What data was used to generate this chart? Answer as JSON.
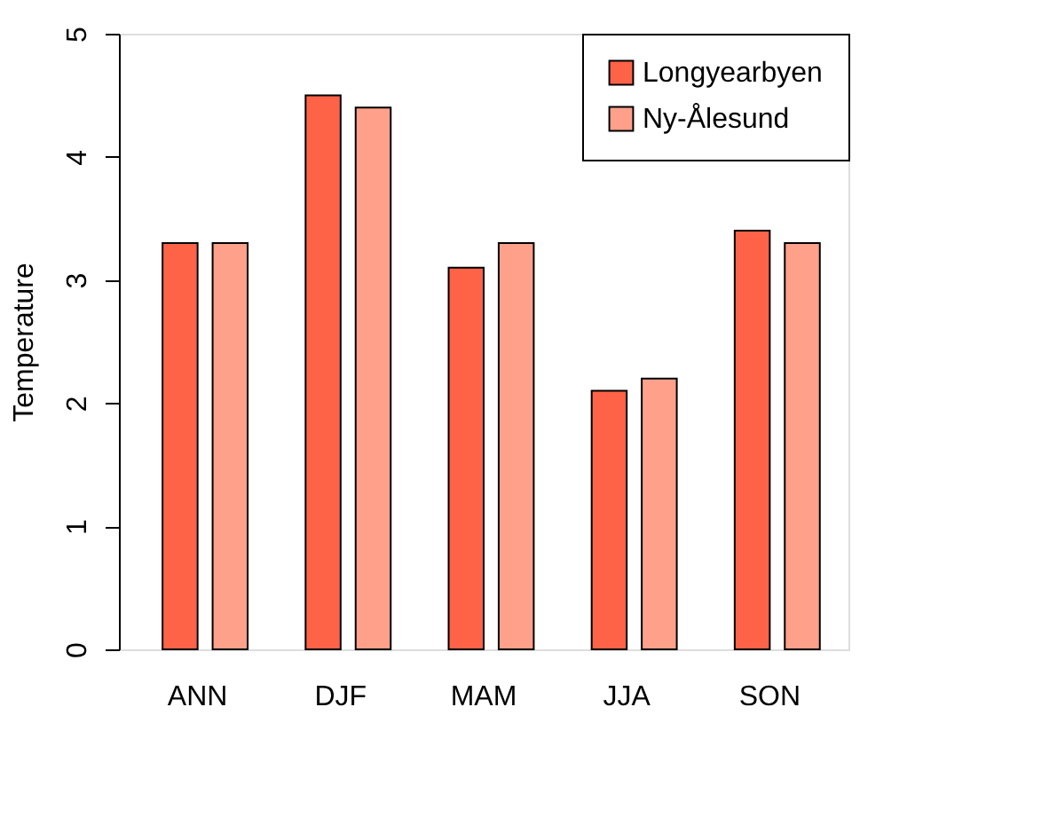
{
  "chart_data": {
    "type": "bar",
    "ylabel": "Temperature",
    "categories": [
      "ANN",
      "DJF",
      "MAM",
      "JJA",
      "SON"
    ],
    "series": [
      {
        "name": "Longyearbyen",
        "color": "#ff6347",
        "values": [
          3.3,
          4.5,
          3.1,
          2.1,
          3.4
        ]
      },
      {
        "name": "Ny-Ålesund",
        "color": "#ffa08a",
        "values": [
          3.3,
          4.4,
          3.3,
          2.2,
          3.3
        ]
      }
    ],
    "ylim": [
      0,
      5
    ],
    "yticks": [
      0,
      1,
      2,
      3,
      4,
      5
    ],
    "grid": false,
    "legend": "top right"
  }
}
